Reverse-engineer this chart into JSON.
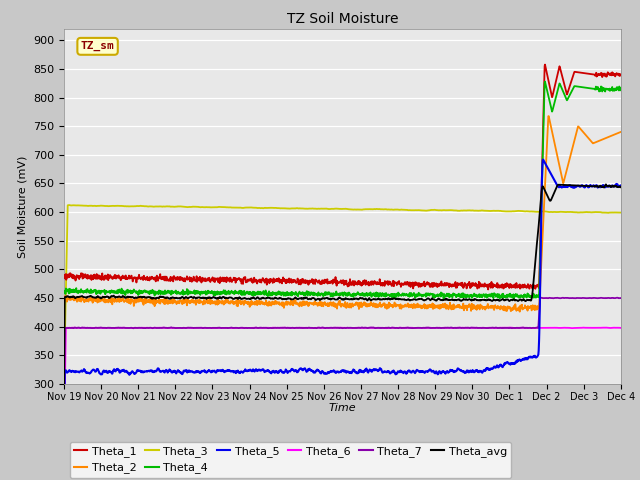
{
  "title": "TZ Soil Moisture",
  "xlabel": "Time",
  "ylabel": "Soil Moisture (mV)",
  "ylim": [
    300,
    920
  ],
  "yticks": [
    300,
    350,
    400,
    450,
    500,
    550,
    600,
    650,
    700,
    750,
    800,
    850,
    900
  ],
  "plot_bg_color": "#e8e8e8",
  "tick_labels": [
    "Nov 19",
    "Nov 20",
    "Nov 21",
    "Nov 22",
    "Nov 23",
    "Nov 24",
    "Nov 25",
    "Nov 26",
    "Nov 27",
    "Nov 28",
    "Nov 29",
    "Nov 30",
    "Dec 1",
    "Dec 2",
    "Dec 3",
    "Dec 4"
  ],
  "colors": {
    "Theta_1": "#cc0000",
    "Theta_2": "#ff8800",
    "Theta_3": "#cccc00",
    "Theta_4": "#00bb00",
    "Theta_5": "#0000ee",
    "Theta_6": "#ff00ff",
    "Theta_7": "#8800aa",
    "Theta_avg": "#000000"
  },
  "legend_bg": "#ffffcc",
  "legend_border": "#ccaa00",
  "box_bg": "#ffffcc",
  "box_border": "#ccaa00"
}
